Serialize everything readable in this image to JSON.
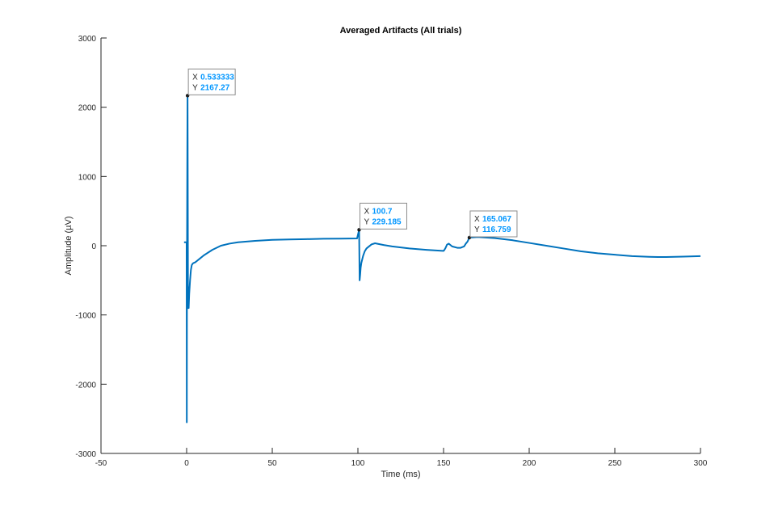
{
  "chart_data": {
    "type": "line",
    "title": "Averaged Artifacts (All trials)",
    "xlabel": "Time (ms)",
    "ylabel": "Amplitude (µV)",
    "xlim": [
      -50,
      300
    ],
    "ylim": [
      -3000,
      3000
    ],
    "xticks": [
      -50,
      0,
      50,
      100,
      150,
      200,
      250,
      300
    ],
    "yticks": [
      -3000,
      -2000,
      -1000,
      0,
      1000,
      2000,
      3000
    ],
    "xtick_labels": [
      "-50",
      "0",
      "50",
      "100",
      "150",
      "200",
      "250",
      "300"
    ],
    "ytick_labels": [
      "-3000",
      "-2000",
      "-1000",
      "0",
      "1000",
      "2000",
      "3000"
    ],
    "grid": false,
    "line_color": "#0072BD",
    "datatip_value_color": "#0096FF",
    "series": [
      {
        "x": [
          -1.5,
          0,
          0.1,
          0.2,
          0.3,
          0.4,
          0.533333,
          0.6,
          0.8,
          1.0,
          1.2,
          1.5,
          2.0,
          2.5,
          3,
          3.5,
          4,
          5,
          6,
          8,
          10,
          15,
          20,
          25,
          30,
          40,
          50,
          60,
          70,
          80,
          90,
          99.5,
          100.7,
          101,
          101.3,
          101.6,
          102,
          103,
          104,
          105,
          106,
          108,
          110,
          115,
          120,
          130,
          140,
          149.5,
          150,
          150.5,
          151.2,
          152,
          153,
          154,
          155,
          158,
          160,
          162,
          163,
          164,
          165.067,
          170,
          180,
          190,
          200,
          210,
          220,
          230,
          240,
          250,
          260,
          270,
          275,
          280,
          290,
          300
        ],
        "y": [
          50,
          50,
          -2550,
          -300,
          500,
          1300,
          2167.27,
          1500,
          -900,
          -600,
          -900,
          -700,
          -500,
          -350,
          -280,
          -260,
          -250,
          -240,
          -220,
          -180,
          -140,
          -60,
          0,
          30,
          50,
          70,
          85,
          90,
          95,
          100,
          102,
          105,
          229.185,
          -500,
          -420,
          -320,
          -250,
          -150,
          -80,
          -40,
          -20,
          20,
          35,
          10,
          -10,
          -40,
          -60,
          -75,
          -75,
          -60,
          -30,
          15,
          30,
          10,
          -10,
          -30,
          -30,
          -10,
          30,
          60,
          116.759,
          125,
          110,
          80,
          40,
          0,
          -40,
          -80,
          -110,
          -130,
          -150,
          -160,
          -163,
          -163,
          -158,
          -150
        ]
      }
    ],
    "datatips": [
      {
        "x_key": "X",
        "y_key": "Y",
        "x_text": "0.533333",
        "y_text": "2167.27",
        "x": 0.533333,
        "y": 2167.27
      },
      {
        "x_key": "X",
        "y_key": "Y",
        "x_text": "100.7",
        "y_text": "229.185",
        "x": 100.7,
        "y": 229.185
      },
      {
        "x_key": "X",
        "y_key": "Y",
        "x_text": "165.067",
        "y_text": "116.759",
        "x": 165.067,
        "y": 116.759
      }
    ]
  }
}
